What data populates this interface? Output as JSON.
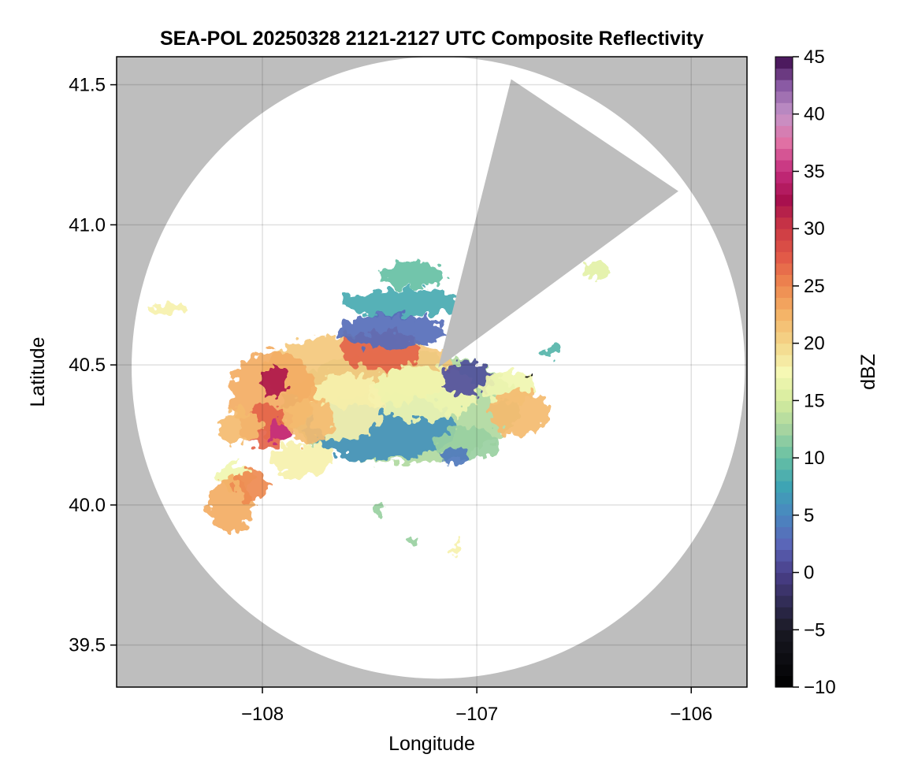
{
  "chart_data": {
    "type": "heatmap",
    "title": "SEA-POL 20250328 2121-2127 UTC Composite Reflectivity",
    "xlabel": "Longitude",
    "ylabel": "Latitude",
    "xlim": [
      -108.68,
      -105.74
    ],
    "ylim": [
      39.35,
      41.6
    ],
    "xticks": [
      -108,
      -107,
      -106
    ],
    "xtick_labels": [
      "−108",
      "−107",
      "−106"
    ],
    "yticks": [
      39.5,
      40.0,
      40.5,
      41.0,
      41.5
    ],
    "ytick_labels": [
      "39.5",
      "40.0",
      "40.5",
      "41.0",
      "41.5"
    ],
    "grid": true,
    "background_color": "#bebebe",
    "coverage_color": "#ffffff",
    "radar": {
      "center_lon": -107.18,
      "center_lat": 40.49,
      "radius_lon": 1.43,
      "radius_lat": 1.11,
      "blocked_sector": [
        [
          -107.18,
          40.49
        ],
        [
          -106.84,
          41.52
        ],
        [
          -106.06,
          41.12
        ]
      ]
    },
    "colorbar": {
      "label": "dBZ",
      "range": [
        -10,
        45
      ],
      "ticks": [
        -10,
        -5,
        0,
        5,
        10,
        15,
        20,
        25,
        30,
        35,
        40,
        45
      ],
      "tick_labels": [
        "−10",
        "−5",
        "0",
        "5",
        "10",
        "15",
        "20",
        "25",
        "30",
        "35",
        "40",
        "45"
      ],
      "step": 1,
      "colormap": "Spectral_r",
      "colors": {
        "-10": "#000000",
        "-5": "#1a1a24",
        "0": "#4a3f8a",
        "2.5": "#5a66b8",
        "5": "#4a86c0",
        "7.5": "#3ea4b4",
        "10": "#66c0a4",
        "12.5": "#a6d4a0",
        "15": "#d6ec9e",
        "17.5": "#f6f8b4",
        "20": "#f4d68a",
        "22.5": "#f4b468",
        "25": "#ee8a50",
        "27.5": "#e25a48",
        "30": "#cc3a44",
        "32.5": "#a8104e",
        "35": "#c42c7c",
        "37.5": "#e070a4",
        "40": "#c494c8",
        "42.5": "#8a5aa4",
        "45": "#3c0a4c"
      }
    },
    "echo_regions": [
      {
        "lon": -107.35,
        "lat": 40.35,
        "rx": 0.55,
        "ry": 0.2,
        "dbz": 13
      },
      {
        "lon": -107.45,
        "lat": 40.28,
        "rx": 0.35,
        "ry": 0.12,
        "dbz": 6
      },
      {
        "lon": -107.55,
        "lat": 40.48,
        "rx": 0.45,
        "ry": 0.13,
        "dbz": 21
      },
      {
        "lon": -107.45,
        "lat": 40.55,
        "rx": 0.18,
        "ry": 0.07,
        "dbz": 27
      },
      {
        "lon": -107.25,
        "lat": 40.4,
        "rx": 0.25,
        "ry": 0.1,
        "dbz": 17
      },
      {
        "lon": -107.62,
        "lat": 40.35,
        "rx": 0.18,
        "ry": 0.12,
        "dbz": 18
      },
      {
        "lon": -107.95,
        "lat": 40.4,
        "rx": 0.2,
        "ry": 0.15,
        "dbz": 23
      },
      {
        "lon": -107.95,
        "lat": 40.44,
        "rx": 0.06,
        "ry": 0.05,
        "dbz": 32
      },
      {
        "lon": -107.98,
        "lat": 40.28,
        "rx": 0.12,
        "ry": 0.08,
        "dbz": 27
      },
      {
        "lon": -107.92,
        "lat": 40.26,
        "rx": 0.05,
        "ry": 0.04,
        "dbz": 35
      },
      {
        "lon": -108.1,
        "lat": 40.28,
        "rx": 0.1,
        "ry": 0.06,
        "dbz": 22
      },
      {
        "lon": -107.78,
        "lat": 40.3,
        "rx": 0.12,
        "ry": 0.08,
        "dbz": 22
      },
      {
        "lon": -107.82,
        "lat": 40.16,
        "rx": 0.15,
        "ry": 0.06,
        "dbz": 18
      },
      {
        "lon": -108.13,
        "lat": 40.1,
        "rx": 0.08,
        "ry": 0.05,
        "dbz": 17
      },
      {
        "lon": -108.15,
        "lat": 40.0,
        "rx": 0.1,
        "ry": 0.1,
        "dbz": 23
      },
      {
        "lon": -108.05,
        "lat": 40.07,
        "rx": 0.07,
        "ry": 0.06,
        "dbz": 25
      },
      {
        "lon": -107.35,
        "lat": 40.72,
        "rx": 0.28,
        "ry": 0.05,
        "dbz": 8
      },
      {
        "lon": -107.3,
        "lat": 40.82,
        "rx": 0.15,
        "ry": 0.05,
        "dbz": 10
      },
      {
        "lon": -107.4,
        "lat": 40.62,
        "rx": 0.25,
        "ry": 0.06,
        "dbz": 3
      },
      {
        "lon": -107.05,
        "lat": 40.45,
        "rx": 0.12,
        "ry": 0.06,
        "dbz": 1
      },
      {
        "lon": -106.85,
        "lat": 40.42,
        "rx": 0.12,
        "ry": 0.06,
        "dbz": 17
      },
      {
        "lon": -106.8,
        "lat": 40.33,
        "rx": 0.14,
        "ry": 0.08,
        "dbz": 22
      },
      {
        "lon": -107.05,
        "lat": 40.22,
        "rx": 0.15,
        "ry": 0.06,
        "dbz": 12
      },
      {
        "lon": -107.1,
        "lat": 40.17,
        "rx": 0.06,
        "ry": 0.03,
        "dbz": 4
      },
      {
        "lon": -108.44,
        "lat": 40.7,
        "rx": 0.1,
        "ry": 0.02,
        "dbz": 18
      },
      {
        "lon": -106.45,
        "lat": 40.84,
        "rx": 0.06,
        "ry": 0.03,
        "dbz": 16
      },
      {
        "lon": -106.65,
        "lat": 40.55,
        "rx": 0.04,
        "ry": 0.02,
        "dbz": 9
      },
      {
        "lon": -107.46,
        "lat": 39.99,
        "rx": 0.03,
        "ry": 0.02,
        "dbz": 12
      },
      {
        "lon": -107.1,
        "lat": 39.84,
        "rx": 0.03,
        "ry": 0.02,
        "dbz": 18
      },
      {
        "lon": -107.3,
        "lat": 39.87,
        "rx": 0.02,
        "ry": 0.015,
        "dbz": 12
      },
      {
        "lon": -106.76,
        "lat": 40.46,
        "rx": 0.01,
        "ry": 0.01,
        "dbz": -10
      }
    ]
  }
}
